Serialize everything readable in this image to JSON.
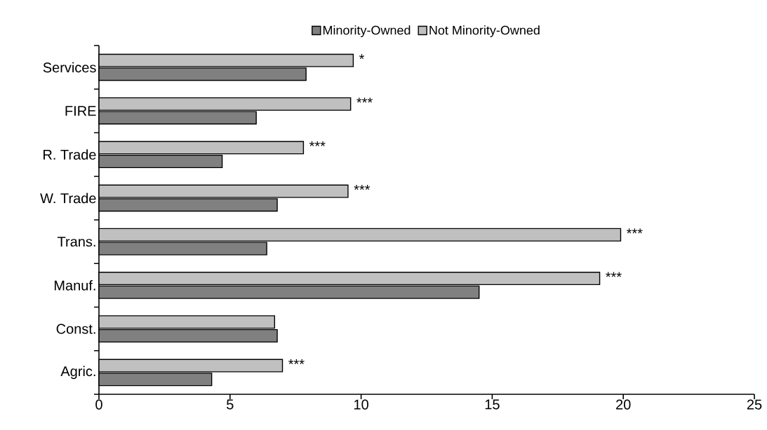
{
  "chart_data": {
    "type": "bar",
    "orientation": "horizontal",
    "categories": [
      "Services",
      "FIRE",
      "R. Trade",
      "W. Trade",
      "Trans.",
      "Manuf.",
      "Const.",
      "Agric."
    ],
    "series": [
      {
        "name": "Minority-Owned",
        "color": "#808080",
        "values": [
          7.9,
          6.0,
          4.7,
          6.8,
          6.4,
          14.5,
          6.8,
          4.3
        ]
      },
      {
        "name": "Not Minority-Owned",
        "color": "#c0c0c0",
        "values": [
          9.7,
          9.6,
          7.8,
          9.5,
          19.9,
          19.1,
          6.7,
          7.0
        ]
      }
    ],
    "xlim": [
      0,
      25
    ],
    "xticks": [
      0,
      5,
      10,
      15,
      20,
      25
    ],
    "grid": false,
    "legend": "top",
    "annotations": [
      {
        "text": "*",
        "x": 9.7,
        "y": "Services"
      },
      {
        "text": "***",
        "x": 9.6,
        "y": "FIRE"
      },
      {
        "text": "***",
        "x": 7.8,
        "y": "R. Trade"
      },
      {
        "text": "***",
        "x": 9.5,
        "y": "W. Trade"
      },
      {
        "text": "***",
        "x": 19.9,
        "y": "Trans."
      },
      {
        "text": "***",
        "x": 19.1,
        "y": "Manuf."
      },
      {
        "text": "***",
        "x": 7.0,
        "y": "Agric."
      }
    ]
  }
}
